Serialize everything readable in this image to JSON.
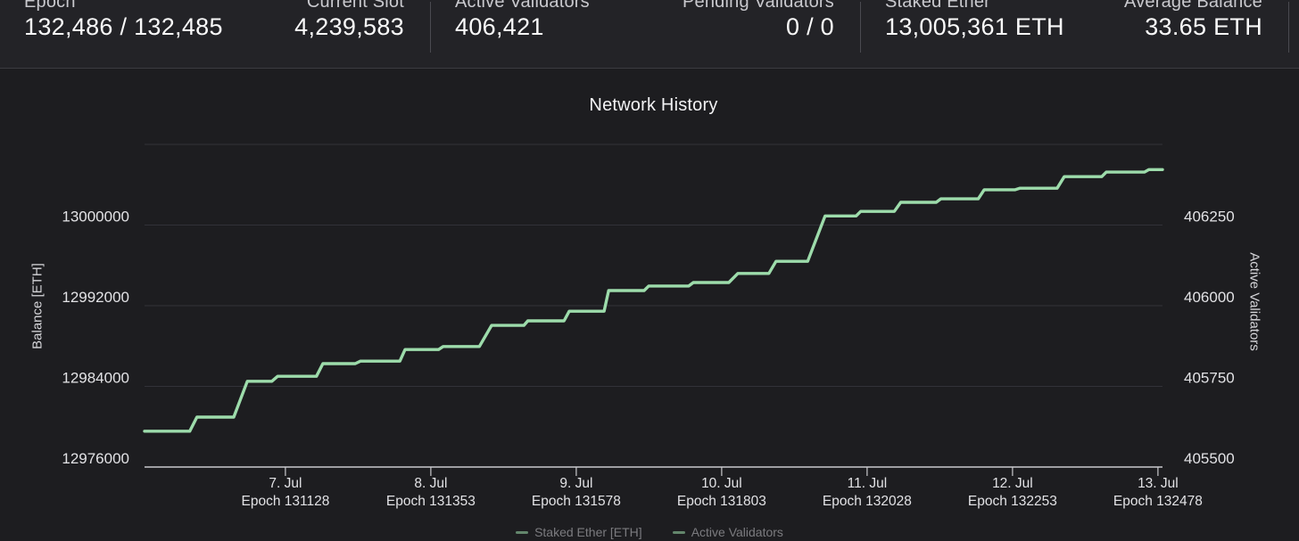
{
  "stats_bar": {
    "groups": [
      {
        "left": {
          "label": "Epoch",
          "value": "132,486 / 132,485"
        },
        "right": {
          "label": "Current Slot",
          "value": "4,239,583"
        }
      },
      {
        "left": {
          "label": "Active Validators",
          "value": "406,421"
        },
        "right": {
          "label": "Pending Validators",
          "value": "0 / 0"
        }
      },
      {
        "left": {
          "label": "Staked Ether",
          "value": "13,005,361 ETH"
        },
        "right": {
          "label": "Average Balance",
          "value": "33.65 ETH"
        }
      }
    ]
  },
  "chart": {
    "title": "Network History",
    "y_left_title": "Balance [ETH]",
    "y_right_title": "Active Validators"
  },
  "legend": {
    "items": [
      "Staked Ether [ETH]",
      "Active Validators"
    ]
  },
  "colors": {
    "background": "#1d1d20",
    "stats_bar_bg": "#232327",
    "accent_green": "#9ddcab",
    "gridline": "#323238",
    "axis": "#c9c9cd",
    "tick_label": "#e2e2e5",
    "label_text": "#c9c9ce",
    "value_text": "#fafafa"
  },
  "chart_data": {
    "type": "line",
    "title": "Network History",
    "line_style": "step-staircase",
    "grid": "horizontal-only",
    "legend_position": "bottom (clipped at screen edge)",
    "x_axis": {
      "unit": "date / epoch",
      "range_epoch": [
        130910,
        132485
      ],
      "ticks": [
        {
          "date": "7. Jul",
          "epoch": 131128
        },
        {
          "date": "8. Jul",
          "epoch": 131353
        },
        {
          "date": "9. Jul",
          "epoch": 131578
        },
        {
          "date": "10. Jul",
          "epoch": 131803
        },
        {
          "date": "11. Jul",
          "epoch": 132028
        },
        {
          "date": "12. Jul",
          "epoch": 132253
        },
        {
          "date": "13. Jul",
          "epoch": 132478
        }
      ],
      "epoch_tick_prefix": "Epoch "
    },
    "y_left": {
      "title": "Balance [ETH]",
      "ticks": [
        13000000,
        12992000,
        12984000,
        12976000
      ],
      "gridlines": [
        13008000,
        13000000,
        12992000,
        12984000
      ],
      "range": [
        12976000,
        13008000
      ]
    },
    "y_right": {
      "title": "Active Validators",
      "ticks": [
        406250,
        406000,
        405750,
        405500
      ],
      "range": [
        405500,
        406500
      ]
    },
    "series": [
      {
        "name": "Staked Ether [ETH] / Active Validators (overlapping lines)",
        "color": "#9ddcab",
        "points_format": "[epoch, balance_eth, active_validators]",
        "points": [
          [
            130910,
            12979550,
            405610
          ],
          [
            130980,
            12979550,
            405610
          ],
          [
            130991,
            12980950,
            405655
          ],
          [
            131048,
            12980950,
            405655
          ],
          [
            131069,
            12984500,
            405765
          ],
          [
            131107,
            12984500,
            405765
          ],
          [
            131116,
            12985000,
            405782
          ],
          [
            131176,
            12985000,
            405782
          ],
          [
            131186,
            12986250,
            405820
          ],
          [
            131236,
            12986250,
            405820
          ],
          [
            131244,
            12986500,
            405829
          ],
          [
            131305,
            12986500,
            405829
          ],
          [
            131313,
            12987650,
            405865
          ],
          [
            131365,
            12987650,
            405865
          ],
          [
            131372,
            12987950,
            405873
          ],
          [
            131428,
            12987950,
            405873
          ],
          [
            131447,
            12990050,
            405939
          ],
          [
            131497,
            12990050,
            405939
          ],
          [
            131503,
            12990500,
            405953
          ],
          [
            131559,
            12990500,
            405953
          ],
          [
            131567,
            12991450,
            405983
          ],
          [
            131621,
            12991450,
            405983
          ],
          [
            131628,
            12993500,
            406047
          ],
          [
            131683,
            12993500,
            406047
          ],
          [
            131690,
            12993950,
            406061
          ],
          [
            131752,
            12993950,
            406061
          ],
          [
            131759,
            12994300,
            406072
          ],
          [
            131814,
            12994300,
            406072
          ],
          [
            131828,
            12995200,
            406099
          ],
          [
            131876,
            12995200,
            406099
          ],
          [
            131887,
            12996400,
            406138
          ],
          [
            131936,
            12996400,
            406138
          ],
          [
            131963,
            13000900,
            406279
          ],
          [
            132011,
            13000900,
            406279
          ],
          [
            132018,
            13001350,
            406293
          ],
          [
            132070,
            13001350,
            406293
          ],
          [
            132080,
            13002250,
            406320
          ],
          [
            132135,
            13002250,
            406320
          ],
          [
            132142,
            13002600,
            406331
          ],
          [
            132200,
            13002600,
            406331
          ],
          [
            132209,
            13003500,
            406359
          ],
          [
            132257,
            13003500,
            406359
          ],
          [
            132264,
            13003650,
            406364
          ],
          [
            132322,
            13003650,
            406364
          ],
          [
            132333,
            13004800,
            406400
          ],
          [
            132391,
            13004800,
            406400
          ],
          [
            132398,
            13005250,
            406414
          ],
          [
            132457,
            13005250,
            406414
          ],
          [
            132464,
            13005500,
            406421
          ],
          [
            132485,
            13005500,
            406421
          ]
        ]
      }
    ]
  }
}
